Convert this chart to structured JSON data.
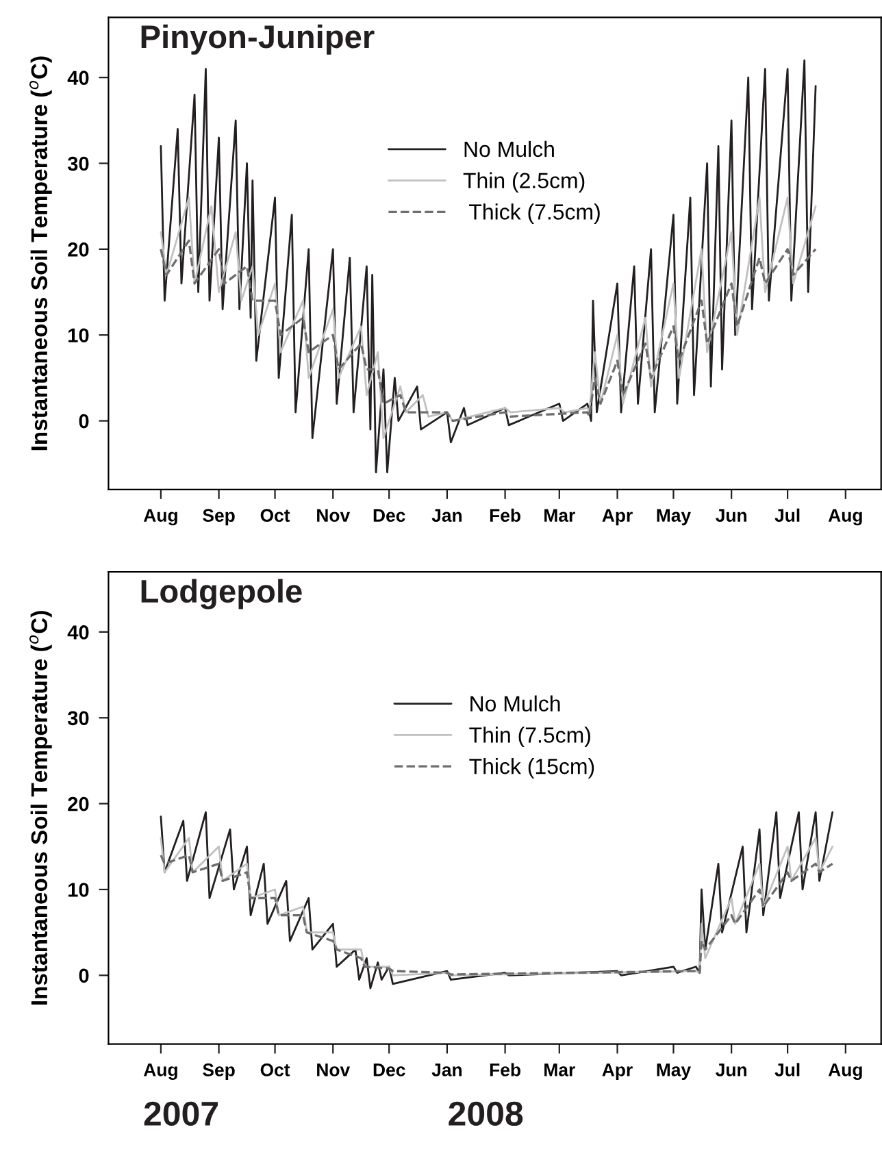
{
  "chart_data": [
    {
      "type": "line",
      "title": "Pinyon-Juniper",
      "ylabel": "Instantaneous Soil Temperature ($^{o}$C)",
      "xlim": [
        "2007-07-04",
        "2008-08-20"
      ],
      "ylim": [
        -8,
        47
      ],
      "xticks": [
        {
          "value": "2007-08-01",
          "label": "Aug"
        },
        {
          "value": "2007-09-01",
          "label": "Sep"
        },
        {
          "value": "2007-10-01",
          "label": "Oct"
        },
        {
          "value": "2007-11-01",
          "label": "Nov"
        },
        {
          "value": "2007-12-01",
          "label": "Dec"
        },
        {
          "value": "2008-01-01",
          "label": "Jan"
        },
        {
          "value": "2008-02-01",
          "label": "Feb"
        },
        {
          "value": "2008-03-01",
          "label": "Mar"
        },
        {
          "value": "2008-04-01",
          "label": "Apr"
        },
        {
          "value": "2008-05-01",
          "label": "May"
        },
        {
          "value": "2008-06-01",
          "label": "Jun"
        },
        {
          "value": "2008-07-01",
          "label": "Jul"
        },
        {
          "value": "2008-08-01",
          "label": "Aug"
        }
      ],
      "yticks": [
        0,
        10,
        20,
        30,
        40
      ],
      "legend": "top",
      "series": [
        {
          "name": "No Mulch",
          "color": "#231f20",
          "line_style": "solid",
          "x": [
            "2007-08-01",
            "2007-08-03",
            "2007-08-10",
            "2007-08-12",
            "2007-08-19",
            "2007-08-21",
            "2007-08-25",
            "2007-08-27",
            "2007-09-01",
            "2007-09-03",
            "2007-09-10",
            "2007-09-12",
            "2007-09-16",
            "2007-09-18",
            "2007-09-19",
            "2007-09-21",
            "2007-10-01",
            "2007-10-03",
            "2007-10-10",
            "2007-10-12",
            "2007-10-19",
            "2007-10-21",
            "2007-11-01",
            "2007-11-03",
            "2007-11-10",
            "2007-11-12",
            "2007-11-19",
            "2007-11-21",
            "2007-11-22",
            "2007-11-24",
            "2007-11-28",
            "2007-11-30",
            "2007-12-04",
            "2007-12-06",
            "2007-12-16",
            "2007-12-18",
            "2008-01-01",
            "2008-01-03",
            "2008-01-10",
            "2008-01-12",
            "2008-02-01",
            "2008-02-03",
            "2008-03-01",
            "2008-03-03",
            "2008-03-16",
            "2008-03-18",
            "2008-03-19",
            "2008-03-21",
            "2008-04-01",
            "2008-04-03",
            "2008-04-10",
            "2008-04-12",
            "2008-04-19",
            "2008-04-21",
            "2008-05-01",
            "2008-05-03",
            "2008-05-10",
            "2008-05-12",
            "2008-05-19",
            "2008-05-21",
            "2008-05-25",
            "2008-05-27",
            "2008-06-01",
            "2008-06-03",
            "2008-06-10",
            "2008-06-12",
            "2008-06-19",
            "2008-06-21",
            "2008-07-01",
            "2008-07-03",
            "2008-07-10",
            "2008-07-12",
            "2008-07-16"
          ],
          "values": [
            32,
            14,
            34,
            16,
            38,
            15,
            41,
            14,
            33,
            13,
            35,
            13,
            30,
            12,
            28,
            7,
            26,
            5,
            24,
            1,
            20,
            -2,
            20,
            2,
            19,
            1,
            18,
            -1,
            17,
            -6,
            6,
            -6,
            5,
            0,
            4,
            -1,
            1,
            -2.5,
            1.5,
            -0.5,
            1.5,
            -0.5,
            2,
            0,
            2,
            0,
            14,
            1,
            16,
            1,
            18,
            2,
            20,
            1,
            24,
            2,
            26,
            3,
            30,
            4,
            32,
            6,
            35,
            10,
            40,
            13,
            41,
            14,
            41,
            14,
            42,
            15,
            39
          ]
        },
        {
          "name": "Thin (2.5cm)",
          "color": "#c0c0c0",
          "line_style": "solid",
          "x": [
            "2007-08-01",
            "2007-08-04",
            "2007-08-16",
            "2007-08-19",
            "2007-08-28",
            "2007-09-01",
            "2007-09-10",
            "2007-09-13",
            "2007-09-19",
            "2007-09-22",
            "2007-10-01",
            "2007-10-04",
            "2007-10-16",
            "2007-10-19",
            "2007-11-01",
            "2007-11-04",
            "2007-11-16",
            "2007-11-19",
            "2007-11-25",
            "2007-11-28",
            "2007-12-07",
            "2007-12-10",
            "2007-12-19",
            "2007-12-22",
            "2008-01-01",
            "2008-01-04",
            "2008-02-01",
            "2008-02-04",
            "2008-03-01",
            "2008-03-04",
            "2008-03-16",
            "2008-03-17",
            "2008-03-20",
            "2008-03-23",
            "2008-04-01",
            "2008-04-04",
            "2008-04-16",
            "2008-04-19",
            "2008-05-01",
            "2008-05-04",
            "2008-05-16",
            "2008-05-19",
            "2008-06-01",
            "2008-06-04",
            "2008-06-16",
            "2008-06-19",
            "2008-07-01",
            "2008-07-04",
            "2008-07-16"
          ],
          "values": [
            22,
            17,
            26,
            16,
            25,
            15,
            22,
            14,
            18,
            10,
            16,
            8,
            14,
            5,
            13,
            5,
            11,
            3,
            8,
            -2,
            4,
            1,
            3,
            0.5,
            1,
            0,
            1.5,
            1,
            1.5,
            1,
            1.5,
            1,
            8,
            2,
            10,
            2,
            12,
            4,
            16,
            5,
            20,
            8,
            22,
            10,
            26,
            15,
            26,
            16,
            25
          ]
        },
        {
          "name": " Thick (7.5cm)",
          "color": "#6e6e6e",
          "line_style": "dashed",
          "x": [
            "2007-08-01",
            "2007-08-04",
            "2007-08-16",
            "2007-08-19",
            "2007-09-01",
            "2007-09-04",
            "2007-09-16",
            "2007-09-19",
            "2007-10-01",
            "2007-10-04",
            "2007-10-16",
            "2007-10-19",
            "2007-11-01",
            "2007-11-04",
            "2007-11-16",
            "2007-11-19",
            "2007-11-25",
            "2007-11-28",
            "2007-12-07",
            "2007-12-10",
            "2008-01-01",
            "2008-01-04",
            "2008-02-01",
            "2008-02-04",
            "2008-03-16",
            "2008-03-17",
            "2008-03-20",
            "2008-03-23",
            "2008-04-01",
            "2008-04-04",
            "2008-04-16",
            "2008-04-19",
            "2008-05-01",
            "2008-05-04",
            "2008-05-16",
            "2008-05-19",
            "2008-06-01",
            "2008-06-04",
            "2008-06-16",
            "2008-06-19",
            "2008-07-01",
            "2008-07-04",
            "2008-07-16"
          ],
          "values": [
            20,
            17,
            21,
            16,
            20,
            16,
            18,
            14,
            14,
            10,
            12,
            8,
            10,
            6,
            9,
            6,
            6,
            2,
            3,
            1,
            1,
            0,
            1,
            0.5,
            1,
            0.5,
            5,
            2,
            7,
            3,
            9,
            5,
            11,
            7,
            14,
            9,
            16,
            11,
            19,
            16,
            20,
            17,
            20
          ]
        }
      ]
    },
    {
      "type": "line",
      "title": "Lodgepole",
      "ylabel": "Instantaneous Soil Temperature ($^{o}$C)",
      "xlim": [
        "2007-07-04",
        "2008-08-20"
      ],
      "ylim": [
        -8,
        47
      ],
      "xticks": [
        {
          "value": "2007-08-01",
          "label": "Aug"
        },
        {
          "value": "2007-09-01",
          "label": "Sep"
        },
        {
          "value": "2007-10-01",
          "label": "Oct"
        },
        {
          "value": "2007-11-01",
          "label": "Nov"
        },
        {
          "value": "2007-12-01",
          "label": "Dec"
        },
        {
          "value": "2008-01-01",
          "label": "Jan"
        },
        {
          "value": "2008-02-01",
          "label": "Feb"
        },
        {
          "value": "2008-03-01",
          "label": "Mar"
        },
        {
          "value": "2008-04-01",
          "label": "Apr"
        },
        {
          "value": "2008-05-01",
          "label": "May"
        },
        {
          "value": "2008-06-01",
          "label": "Jun"
        },
        {
          "value": "2008-07-01",
          "label": "Jul"
        },
        {
          "value": "2008-08-01",
          "label": "Aug"
        }
      ],
      "yticks": [
        0,
        10,
        20,
        30,
        40
      ],
      "legend": "top",
      "annotations": [
        "2007",
        "2008"
      ],
      "series": [
        {
          "name": "No Mulch",
          "color": "#231f20",
          "line_style": "solid",
          "x": [
            "2007-08-01",
            "2007-08-03",
            "2007-08-13",
            "2007-08-15",
            "2007-08-25",
            "2007-08-27",
            "2007-09-07",
            "2007-09-09",
            "2007-09-16",
            "2007-09-18",
            "2007-09-25",
            "2007-09-27",
            "2007-10-07",
            "2007-10-09",
            "2007-10-19",
            "2007-10-21",
            "2007-11-01",
            "2007-11-03",
            "2007-11-13",
            "2007-11-15",
            "2007-11-19",
            "2007-11-21",
            "2007-11-25",
            "2007-11-27",
            "2007-12-01",
            "2007-12-03",
            "2008-01-01",
            "2008-01-03",
            "2008-02-01",
            "2008-02-03",
            "2008-04-01",
            "2008-04-03",
            "2008-05-01",
            "2008-05-03",
            "2008-05-13",
            "2008-05-15",
            "2008-05-16",
            "2008-05-18",
            "2008-05-25",
            "2008-05-27",
            "2008-06-07",
            "2008-06-09",
            "2008-06-16",
            "2008-06-18",
            "2008-06-25",
            "2008-06-27",
            "2008-07-07",
            "2008-07-09",
            "2008-07-16",
            "2008-07-18",
            "2008-07-25"
          ],
          "values": [
            18.5,
            12,
            18,
            11,
            19,
            9,
            17,
            10,
            15,
            7,
            13,
            6,
            11,
            4,
            9,
            3,
            6,
            1,
            3,
            -0.5,
            2,
            -1.5,
            1.5,
            -0.5,
            1,
            -1,
            0.5,
            -0.5,
            0.3,
            0,
            0.5,
            0,
            1,
            0.3,
            1,
            0.3,
            10,
            3,
            13,
            5,
            15,
            5,
            17,
            7,
            19,
            9,
            19,
            10,
            19,
            11,
            19
          ]
        },
        {
          "name": "Thin (7.5cm)",
          "color": "#c0c0c0",
          "line_style": "solid",
          "x": [
            "2007-08-01",
            "2007-08-03",
            "2007-08-16",
            "2007-08-18",
            "2007-09-01",
            "2007-09-03",
            "2007-09-16",
            "2007-09-18",
            "2007-10-01",
            "2007-10-03",
            "2007-10-16",
            "2007-10-18",
            "2007-11-01",
            "2007-11-03",
            "2007-11-16",
            "2007-11-18",
            "2007-12-01",
            "2007-12-03",
            "2008-01-01",
            "2008-01-03",
            "2008-05-13",
            "2008-05-15",
            "2008-05-16",
            "2008-05-18",
            "2008-06-01",
            "2008-06-03",
            "2008-06-16",
            "2008-06-18",
            "2008-07-01",
            "2008-07-03",
            "2008-07-16",
            "2008-07-18",
            "2008-07-25"
          ],
          "values": [
            16,
            12,
            16,
            12,
            15,
            11,
            13,
            9,
            10,
            7,
            8,
            5,
            5,
            3,
            3,
            1,
            1,
            0,
            0.3,
            0,
            0.5,
            0.3,
            6,
            2,
            9,
            6,
            13,
            8,
            15,
            11,
            16,
            12,
            15
          ]
        },
        {
          "name": "Thick (15cm)",
          "color": "#6e6e6e",
          "line_style": "dashed",
          "x": [
            "2007-08-01",
            "2007-08-03",
            "2007-08-16",
            "2007-08-18",
            "2007-09-01",
            "2007-09-03",
            "2007-09-16",
            "2007-09-18",
            "2007-10-01",
            "2007-10-03",
            "2007-10-16",
            "2007-10-18",
            "2007-11-01",
            "2007-11-03",
            "2007-11-16",
            "2007-11-18",
            "2007-12-01",
            "2007-12-03",
            "2008-01-01",
            "2008-01-03",
            "2008-05-13",
            "2008-05-15",
            "2008-05-16",
            "2008-05-18",
            "2008-06-01",
            "2008-06-03",
            "2008-06-16",
            "2008-06-18",
            "2008-07-01",
            "2008-07-03",
            "2008-07-16",
            "2008-07-18",
            "2008-07-25"
          ],
          "values": [
            14,
            13,
            14,
            12,
            13,
            11,
            12,
            9,
            9,
            7,
            7,
            5,
            4,
            3,
            2,
            1,
            0.8,
            0.5,
            0.3,
            0.1,
            0.5,
            0.3,
            4,
            3,
            7,
            6,
            10,
            8,
            12,
            11,
            13,
            12,
            13
          ]
        }
      ]
    }
  ]
}
